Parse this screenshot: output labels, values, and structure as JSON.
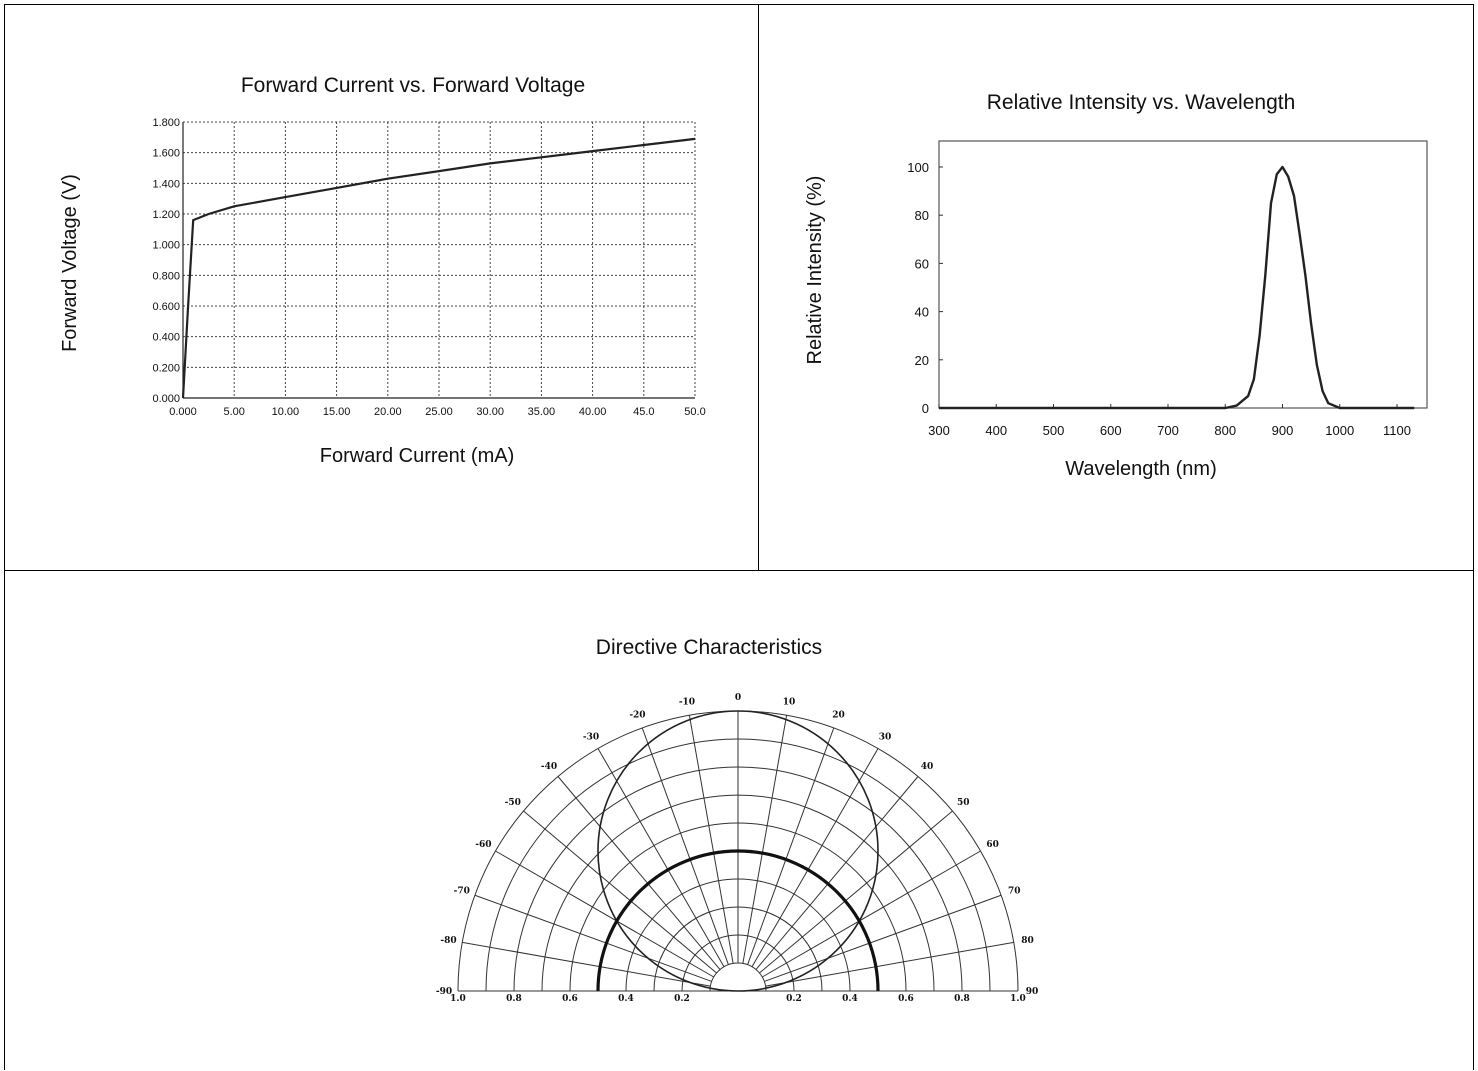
{
  "chart_data": [
    {
      "type": "line",
      "title": "Forward Current vs. Forward Voltage",
      "xlabel": "Forward Current (mA)",
      "ylabel": "Forward Voltage (V)",
      "xlim": [
        0,
        50
      ],
      "ylim": [
        0,
        1.8
      ],
      "grid": true,
      "x_tick_labels": [
        "0.000",
        "5.00",
        "10.00",
        "15.00",
        "20.00",
        "25.00",
        "30.00",
        "35.00",
        "40.00",
        "45.0",
        "50.0"
      ],
      "y_tick_labels": [
        "0.000",
        "0.200",
        "0.400",
        "0.600",
        "0.800",
        "1.000",
        "1.200",
        "1.400",
        "1.600",
        "1.800"
      ],
      "x_ticks": [
        0,
        5,
        10,
        15,
        20,
        25,
        30,
        35,
        40,
        45,
        50
      ],
      "y_ticks": [
        0,
        0.2,
        0.4,
        0.6,
        0.8,
        1.0,
        1.2,
        1.4,
        1.6,
        1.8
      ],
      "series": [
        {
          "x": [
            0,
            0.5,
            1.0,
            2.5,
            5,
            10,
            15,
            20,
            25,
            30,
            35,
            40,
            45,
            50
          ],
          "values": [
            0,
            0.6,
            1.16,
            1.2,
            1.25,
            1.31,
            1.37,
            1.43,
            1.48,
            1.53,
            1.57,
            1.61,
            1.65,
            1.69
          ]
        }
      ]
    },
    {
      "type": "line",
      "title": "Relative Intensity vs. Wavelength",
      "xlabel": "Wavelength (nm)",
      "ylabel": "Relative Intensity (%)",
      "xlim": [
        300,
        1150
      ],
      "ylim": [
        0,
        110
      ],
      "grid": false,
      "x_ticks": [
        300,
        400,
        500,
        600,
        700,
        800,
        900,
        1000,
        1100
      ],
      "y_ticks": [
        0,
        20,
        40,
        60,
        80,
        100
      ],
      "series": [
        {
          "x": [
            300,
            800,
            820,
            840,
            850,
            860,
            870,
            880,
            890,
            900,
            910,
            920,
            930,
            940,
            950,
            960,
            970,
            980,
            1000,
            1130
          ],
          "values": [
            0,
            0,
            1,
            5,
            12,
            30,
            55,
            85,
            97,
            100,
            96,
            88,
            72,
            55,
            35,
            18,
            7,
            2,
            0,
            0
          ]
        }
      ]
    },
    {
      "type": "polar",
      "title": "Directive Characteristics",
      "angle_range": [
        -90,
        90
      ],
      "angle_tick_labels": [
        "-90",
        "-80",
        "-70",
        "-60",
        "-50",
        "-40",
        "-30",
        "-20",
        "-10",
        "0",
        "10",
        "20",
        "30",
        "40",
        "50",
        "60",
        "70",
        "80",
        "90"
      ],
      "radius_tick_labels": [
        "1.0",
        "0.8",
        "0.6",
        "0.4",
        "0.2",
        "0.2",
        "0.4",
        "0.6",
        "0.8",
        "1.0"
      ],
      "series": [
        {
          "description_shape": "narrow",
          "r_max": 1.0,
          "angle_half_power": 30
        },
        {
          "description_shape": "wide",
          "r_max": 0.5,
          "angle_half_power": 90
        }
      ]
    }
  ]
}
